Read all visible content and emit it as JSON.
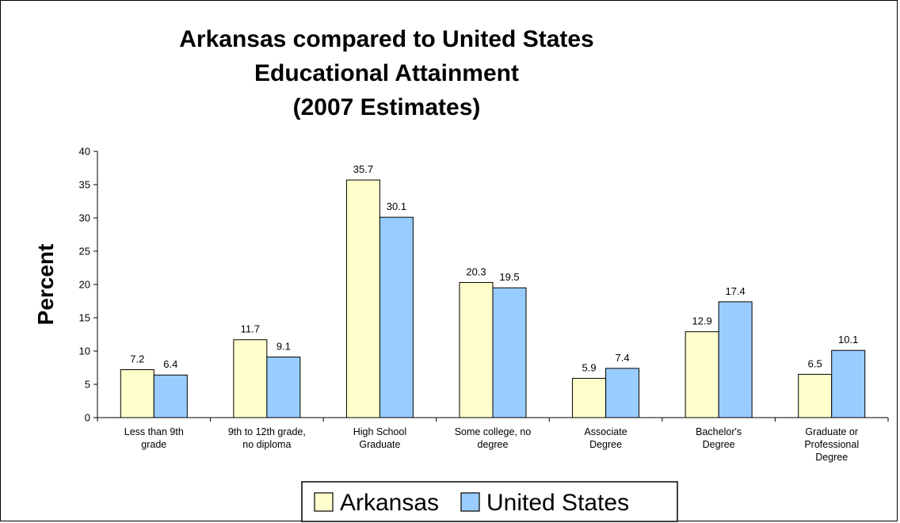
{
  "chart_data": {
    "type": "bar",
    "title": [
      "Arkansas compared to United States",
      "Educational Attainment",
      "(2007 Estimates)"
    ],
    "xlabel": "",
    "ylabel": "Percent",
    "ylim": [
      0,
      40
    ],
    "yticks": [
      "0",
      "5",
      "10",
      "15",
      "20",
      "25",
      "30",
      "35",
      "40"
    ],
    "grid": false,
    "legend_position": "bottom",
    "categories": [
      [
        "Less than 9th",
        "grade"
      ],
      [
        "9th to 12th grade,",
        "no diploma"
      ],
      [
        "High School",
        "Graduate"
      ],
      [
        "Some college,      no",
        "degree"
      ],
      [
        "Associate",
        "Degree"
      ],
      [
        "Bachelor's",
        "Degree"
      ],
      [
        "Graduate or",
        "Professional",
        "Degree"
      ]
    ],
    "series": [
      {
        "name": "Arkansas",
        "color": "#ffffcc",
        "values": [
          7.2,
          11.7,
          35.7,
          20.3,
          5.9,
          12.9,
          6.5
        ],
        "labels": [
          "7.2",
          "11.7",
          "35.7",
          "20.3",
          "5.9",
          "12.9",
          "6.5"
        ]
      },
      {
        "name": "United States",
        "color": "#99ccff",
        "values": [
          6.4,
          9.1,
          30.1,
          19.5,
          7.4,
          17.4,
          10.1
        ],
        "labels": [
          "6.4",
          "9.1",
          "30.1",
          "19.5",
          "7.4",
          "17.4",
          "10.1"
        ]
      }
    ]
  }
}
